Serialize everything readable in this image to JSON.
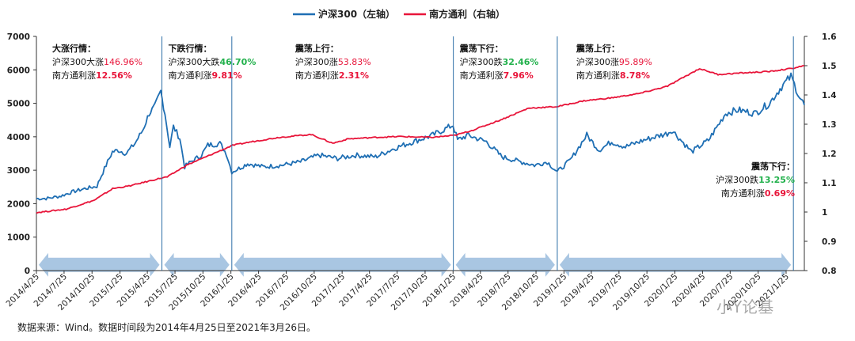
{
  "chart_data": {
    "type": "line",
    "series": [
      {
        "name": "沪深300（左轴）",
        "axis": "left",
        "color": "#1f6fb4",
        "points": [
          [
            "2014-04-25",
            2150
          ],
          [
            "2014-06-01",
            2160
          ],
          [
            "2014-07-15",
            2230
          ],
          [
            "2014-08-20",
            2350
          ],
          [
            "2014-10-01",
            2450
          ],
          [
            "2014-11-10",
            2520
          ],
          [
            "2014-12-05",
            3050
          ],
          [
            "2014-12-31",
            3550
          ],
          [
            "2015-01-20",
            3600
          ],
          [
            "2015-02-15",
            3500
          ],
          [
            "2015-03-15",
            3800
          ],
          [
            "2015-04-10",
            4200
          ],
          [
            "2015-05-01",
            4700
          ],
          [
            "2015-05-20",
            4900
          ],
          [
            "2015-06-08",
            5350
          ],
          [
            "2015-06-22",
            4700
          ],
          [
            "2015-07-08",
            3700
          ],
          [
            "2015-07-20",
            4300
          ],
          [
            "2015-08-10",
            3950
          ],
          [
            "2015-08-26",
            3100
          ],
          [
            "2015-09-15",
            3250
          ],
          [
            "2015-10-20",
            3450
          ],
          [
            "2015-11-10",
            3750
          ],
          [
            "2015-12-20",
            3800
          ],
          [
            "2016-01-10",
            3500
          ],
          [
            "2016-01-28",
            2950
          ],
          [
            "2016-02-20",
            3050
          ],
          [
            "2016-03-20",
            3200
          ],
          [
            "2016-05-10",
            3100
          ],
          [
            "2016-07-10",
            3150
          ],
          [
            "2016-09-10",
            3250
          ],
          [
            "2016-11-10",
            3450
          ],
          [
            "2017-01-10",
            3350
          ],
          [
            "2017-03-10",
            3450
          ],
          [
            "2017-05-15",
            3400
          ],
          [
            "2017-07-15",
            3650
          ],
          [
            "2017-09-15",
            3850
          ],
          [
            "2017-11-20",
            4050
          ],
          [
            "2018-01-25",
            4350
          ],
          [
            "2018-02-09",
            3900
          ],
          [
            "2018-03-15",
            4050
          ],
          [
            "2018-05-15",
            3850
          ],
          [
            "2018-07-05",
            3400
          ],
          [
            "2018-08-15",
            3300
          ],
          [
            "2018-10-20",
            3150
          ],
          [
            "2018-12-01",
            3250
          ],
          [
            "2019-01-03",
            2950
          ],
          [
            "2019-02-15",
            3300
          ],
          [
            "2019-04-10",
            4050
          ],
          [
            "2019-05-20",
            3600
          ],
          [
            "2019-07-01",
            3850
          ],
          [
            "2019-08-15",
            3700
          ],
          [
            "2019-10-15",
            3900
          ],
          [
            "2019-12-31",
            4100
          ],
          [
            "2020-01-15",
            4200
          ],
          [
            "2020-03-20",
            3550
          ],
          [
            "2020-05-15",
            3900
          ],
          [
            "2020-07-10",
            4700
          ],
          [
            "2020-08-20",
            4800
          ],
          [
            "2020-10-15",
            4700
          ],
          [
            "2020-12-01",
            5000
          ],
          [
            "2021-01-10",
            5500
          ],
          [
            "2021-02-10",
            5800
          ],
          [
            "2021-03-10",
            5200
          ],
          [
            "2021-03-26",
            4950
          ]
        ]
      },
      {
        "name": "南方通利（右轴）",
        "axis": "right",
        "color": "#e8153a",
        "points": [
          [
            "2014-04-25",
            0.998
          ],
          [
            "2014-08-01",
            1.01
          ],
          [
            "2014-11-01",
            1.04
          ],
          [
            "2015-01-01",
            1.08
          ],
          [
            "2015-03-01",
            1.09
          ],
          [
            "2015-06-05",
            1.115
          ],
          [
            "2015-06-30",
            1.12
          ],
          [
            "2015-09-01",
            1.16
          ],
          [
            "2016-01-31",
            1.228
          ],
          [
            "2016-04-01",
            1.24
          ],
          [
            "2016-07-01",
            1.255
          ],
          [
            "2016-10-15",
            1.265
          ],
          [
            "2016-12-25",
            1.235
          ],
          [
            "2017-02-15",
            1.25
          ],
          [
            "2017-05-15",
            1.255
          ],
          [
            "2017-08-01",
            1.258
          ],
          [
            "2017-11-15",
            1.255
          ],
          [
            "2018-01-31",
            1.262
          ],
          [
            "2018-04-01",
            1.28
          ],
          [
            "2018-07-01",
            1.315
          ],
          [
            "2018-10-01",
            1.355
          ],
          [
            "2019-01-03",
            1.36
          ],
          [
            "2019-04-01",
            1.38
          ],
          [
            "2019-07-01",
            1.39
          ],
          [
            "2019-10-01",
            1.405
          ],
          [
            "2020-01-01",
            1.43
          ],
          [
            "2020-04-15",
            1.49
          ],
          [
            "2020-06-15",
            1.47
          ],
          [
            "2020-09-01",
            1.475
          ],
          [
            "2020-12-01",
            1.48
          ],
          [
            "2021-02-10",
            1.49
          ],
          [
            "2021-03-26",
            1.5
          ]
        ]
      }
    ],
    "y_left": {
      "min": 0,
      "max": 7000,
      "ticks": [
        "0",
        "1000",
        "2000",
        "3000",
        "4000",
        "5000",
        "6000",
        "7000"
      ]
    },
    "y_right": {
      "min": 0.8,
      "max": 1.6,
      "ticks": [
        "0.8",
        "0.9",
        "1",
        "1.1",
        "1.2",
        "1.3",
        "1.4",
        "1.5",
        "1.6"
      ]
    },
    "x_range": [
      "2014-04-25",
      "2021-03-26"
    ],
    "x_ticks": [
      "2014/4/25",
      "2014/7/25",
      "2014/10/25",
      "2015/1/25",
      "2015/4/25",
      "2015/7/25",
      "2015/10/25",
      "2016/1/25",
      "2016/4/25",
      "2016/7/25",
      "2016/10/25",
      "2017/1/25",
      "2017/4/25",
      "2017/7/25",
      "2017/10/25",
      "2018/1/25",
      "2018/4/25",
      "2018/7/25",
      "2018/10/25",
      "2019/1/25",
      "2019/4/25",
      "2019/7/25",
      "2019/10/25",
      "2020/1/25",
      "2020/4/25",
      "2020/7/25",
      "2020/10/25",
      "2021/1/25"
    ],
    "phases": [
      {
        "start": "2014-04-25",
        "end": "2015-06-12",
        "title": "大涨行情：",
        "line1": "沪深300大涨",
        "v1": "146.96%",
        "c1": "#e8153a",
        "line2": "南方通利涨",
        "v2": "12.56%",
        "c2": "#e8153a"
      },
      {
        "start": "2015-06-12",
        "end": "2016-01-28",
        "title": "下跌行情：",
        "line1": "沪深300大跌",
        "v1": "46.70%",
        "c1": "#22b14c",
        "line2": "南方通利涨",
        "v2": "9.81%",
        "c2": "#e8153a"
      },
      {
        "start": "2016-01-28",
        "end": "2018-01-26",
        "title": "震荡上行：",
        "line1": "沪深300涨",
        "v1": "53.83%",
        "c1": "#e8153a",
        "line2": "南方通利涨",
        "v2": "2.31%",
        "c2": "#e8153a"
      },
      {
        "start": "2018-01-26",
        "end": "2019-01-03",
        "title": "震荡下行：",
        "line1": "沪深300跌",
        "v1": "32.46%",
        "c1": "#22b14c",
        "line2": "南方通利涨",
        "v2": "7.96%",
        "c2": "#e8153a"
      },
      {
        "start": "2019-01-03",
        "end": "2021-02-18",
        "title": "震荡上行：",
        "line1": "沪深300涨",
        "v1": "95.89%",
        "c1": "#e8153a",
        "line2": "南方通利涨",
        "v2": "8.78%",
        "c2": "#e8153a"
      },
      {
        "start": "2021-02-18",
        "end": "2021-03-26",
        "title": "震荡下行：",
        "line1": "沪深300跌",
        "v1": "13.25%",
        "c1": "#22b14c",
        "line2": "南方通利涨",
        "v2": "0.69%",
        "c2": "#e8153a"
      }
    ],
    "legend_position": "top-center",
    "grid": false,
    "arrow_color": "#a9c6e2"
  },
  "source_note": "数据来源：Wind。数据时间段为2014年4月25日至2021年3月26日。",
  "watermark": "小Y论基"
}
